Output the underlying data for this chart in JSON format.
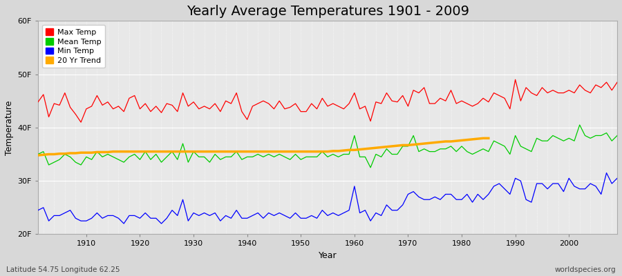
{
  "title": "Yearly Average Temperatures 1901 - 2009",
  "xlabel": "Year",
  "ylabel": "Temperature",
  "years": [
    1901,
    1902,
    1903,
    1904,
    1905,
    1906,
    1907,
    1908,
    1909,
    1910,
    1911,
    1912,
    1913,
    1914,
    1915,
    1916,
    1917,
    1918,
    1919,
    1920,
    1921,
    1922,
    1923,
    1924,
    1925,
    1926,
    1927,
    1928,
    1929,
    1930,
    1931,
    1932,
    1933,
    1934,
    1935,
    1936,
    1937,
    1938,
    1939,
    1940,
    1941,
    1942,
    1943,
    1944,
    1945,
    1946,
    1947,
    1948,
    1949,
    1950,
    1951,
    1952,
    1953,
    1954,
    1955,
    1956,
    1957,
    1958,
    1959,
    1960,
    1961,
    1962,
    1963,
    1964,
    1965,
    1966,
    1967,
    1968,
    1969,
    1970,
    1971,
    1972,
    1973,
    1974,
    1975,
    1976,
    1977,
    1978,
    1979,
    1980,
    1981,
    1982,
    1983,
    1984,
    1985,
    1986,
    1987,
    1988,
    1989,
    1990,
    1991,
    1992,
    1993,
    1994,
    1995,
    1996,
    1997,
    1998,
    1999,
    2000,
    2001,
    2002,
    2003,
    2004,
    2005,
    2006,
    2007,
    2008,
    2009
  ],
  "max_temp": [
    44.8,
    46.2,
    42.0,
    44.5,
    44.2,
    46.5,
    43.8,
    42.5,
    41.0,
    43.5,
    44.0,
    46.0,
    44.2,
    44.8,
    43.5,
    44.0,
    43.0,
    45.5,
    46.0,
    43.5,
    44.5,
    43.0,
    44.0,
    42.8,
    44.5,
    44.2,
    43.0,
    46.5,
    44.0,
    44.8,
    43.5,
    44.0,
    43.5,
    44.5,
    43.0,
    45.0,
    44.5,
    46.5,
    43.0,
    41.5,
    44.0,
    44.5,
    45.0,
    44.5,
    43.5,
    45.0,
    43.5,
    43.8,
    44.5,
    43.0,
    43.0,
    44.5,
    43.5,
    45.5,
    44.0,
    44.5,
    44.0,
    43.5,
    44.5,
    46.5,
    43.5,
    44.0,
    41.2,
    44.8,
    44.5,
    46.5,
    45.0,
    44.8,
    46.0,
    44.0,
    47.0,
    46.5,
    47.5,
    44.5,
    44.5,
    45.5,
    45.0,
    47.0,
    44.5,
    45.0,
    44.5,
    44.0,
    44.5,
    45.5,
    44.8,
    46.5,
    46.0,
    45.5,
    43.5,
    49.0,
    45.0,
    47.5,
    46.5,
    46.0,
    47.5,
    46.5,
    47.0,
    46.5,
    46.5,
    47.0,
    46.5,
    48.0,
    47.0,
    46.5,
    48.0,
    47.5,
    48.5,
    47.0,
    48.5
  ],
  "mean_temp": [
    35.0,
    35.5,
    33.0,
    33.5,
    34.0,
    35.0,
    34.5,
    33.5,
    33.0,
    34.5,
    34.0,
    35.5,
    34.5,
    35.0,
    34.5,
    34.0,
    33.5,
    34.5,
    35.0,
    34.0,
    35.5,
    34.0,
    35.0,
    33.5,
    34.5,
    35.5,
    34.0,
    37.0,
    33.5,
    35.5,
    34.5,
    34.5,
    33.5,
    35.0,
    34.0,
    34.5,
    34.5,
    35.5,
    34.0,
    34.5,
    34.5,
    35.0,
    34.5,
    35.0,
    34.5,
    35.0,
    34.5,
    34.0,
    35.0,
    34.0,
    34.5,
    34.5,
    34.5,
    35.5,
    34.5,
    35.0,
    34.5,
    35.0,
    35.0,
    38.5,
    34.5,
    34.5,
    32.5,
    35.0,
    34.5,
    36.0,
    35.0,
    35.0,
    36.5,
    36.5,
    38.5,
    35.5,
    36.0,
    35.5,
    35.5,
    36.0,
    36.0,
    36.5,
    35.5,
    36.5,
    35.5,
    35.0,
    35.5,
    36.0,
    35.5,
    37.5,
    37.0,
    36.5,
    35.0,
    38.5,
    36.5,
    36.0,
    35.5,
    38.0,
    37.5,
    37.5,
    38.5,
    38.0,
    37.5,
    38.0,
    37.5,
    40.5,
    38.5,
    38.0,
    38.5,
    38.5,
    39.0,
    37.5,
    38.5
  ],
  "min_temp": [
    24.5,
    25.0,
    22.5,
    23.5,
    23.5,
    24.0,
    24.5,
    23.0,
    22.5,
    22.5,
    23.0,
    24.0,
    23.0,
    23.5,
    23.5,
    23.0,
    22.0,
    23.5,
    23.5,
    23.0,
    24.0,
    23.0,
    23.0,
    22.0,
    23.0,
    24.5,
    23.5,
    26.5,
    22.5,
    24.0,
    23.5,
    24.0,
    23.5,
    24.0,
    22.5,
    23.5,
    23.0,
    24.5,
    23.0,
    23.0,
    23.5,
    24.0,
    23.0,
    24.0,
    23.5,
    24.0,
    23.5,
    23.0,
    24.0,
    23.0,
    23.0,
    23.5,
    23.0,
    24.5,
    23.5,
    24.0,
    23.5,
    24.0,
    24.5,
    29.0,
    24.0,
    24.5,
    22.5,
    24.0,
    23.5,
    25.5,
    24.5,
    24.5,
    25.5,
    27.5,
    28.0,
    27.0,
    26.5,
    26.5,
    27.0,
    26.5,
    27.5,
    27.5,
    26.5,
    26.5,
    27.5,
    26.0,
    27.5,
    26.5,
    27.5,
    29.0,
    29.5,
    28.5,
    27.5,
    30.5,
    30.0,
    26.5,
    26.0,
    29.5,
    29.5,
    28.5,
    29.5,
    29.5,
    28.0,
    30.5,
    29.0,
    28.5,
    28.5,
    29.5,
    29.0,
    27.5,
    31.5,
    29.5,
    30.5
  ],
  "trend": [
    34.8,
    34.9,
    35.0,
    35.0,
    35.1,
    35.1,
    35.2,
    35.2,
    35.3,
    35.3,
    35.3,
    35.4,
    35.4,
    35.4,
    35.5,
    35.5,
    35.5,
    35.5,
    35.5,
    35.5,
    35.5,
    35.5,
    35.5,
    35.5,
    35.5,
    35.5,
    35.5,
    35.5,
    35.5,
    35.5,
    35.5,
    35.5,
    35.5,
    35.5,
    35.5,
    35.5,
    35.5,
    35.5,
    35.5,
    35.5,
    35.5,
    35.5,
    35.5,
    35.5,
    35.5,
    35.5,
    35.5,
    35.5,
    35.5,
    35.5,
    35.5,
    35.5,
    35.5,
    35.5,
    35.5,
    35.6,
    35.6,
    35.7,
    35.8,
    35.8,
    35.9,
    36.0,
    36.1,
    36.2,
    36.3,
    36.4,
    36.5,
    36.6,
    36.7,
    36.7,
    36.8,
    36.9,
    37.0,
    37.1,
    37.2,
    37.3,
    37.4,
    37.4,
    37.5,
    37.6,
    37.7,
    37.8,
    37.9,
    38.0,
    38.0,
    null,
    null,
    null,
    null,
    null,
    null,
    null,
    null,
    null,
    null,
    null,
    null,
    null,
    null,
    null,
    null,
    null,
    null,
    null,
    null,
    null,
    null,
    null,
    null,
    null
  ],
  "max_color": "#ff0000",
  "mean_color": "#00cc00",
  "min_color": "#0000ff",
  "trend_color": "#ffaa00",
  "fig_bg_color": "#d8d8d8",
  "plot_bg_color": "#e8e8e8",
  "grid_color": "#ffffff",
  "ylim": [
    20,
    60
  ],
  "yticks": [
    20,
    30,
    40,
    50,
    60
  ],
  "ytick_labels": [
    "20F",
    "30F",
    "40F",
    "50F",
    "60F"
  ],
  "xlim_left": 1901,
  "xlim_right": 2009,
  "xticks": [
    1910,
    1920,
    1930,
    1940,
    1950,
    1960,
    1970,
    1980,
    1990,
    2000
  ],
  "footnote_left": "Latitude 54.75 Longitude 62.25",
  "footnote_right": "worldspecies.org",
  "title_fontsize": 14,
  "axis_label_fontsize": 9,
  "tick_fontsize": 8,
  "legend_fontsize": 8,
  "footnote_fontsize": 7.5
}
